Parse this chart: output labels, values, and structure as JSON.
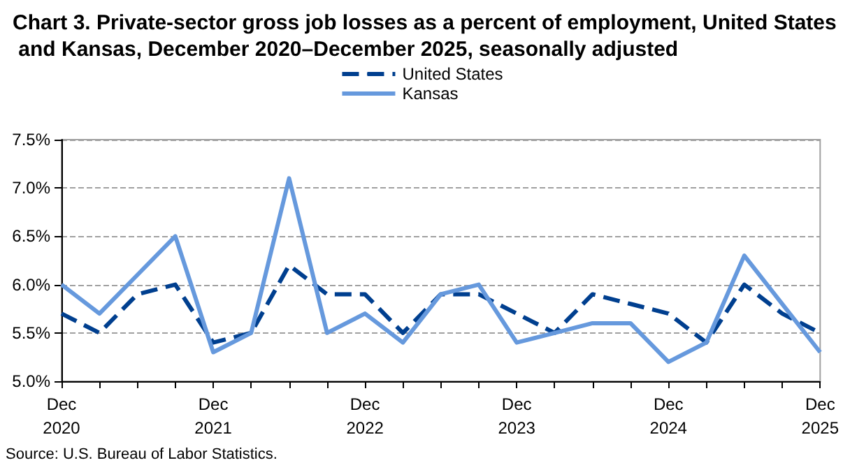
{
  "chart_data": {
    "type": "line",
    "title": "Chart 3. Private-sector gross job losses as a percent of employment, United States and Kansas, December 2020–December 2025, seasonally adjusted",
    "categories": [
      "Dec 2020",
      null,
      null,
      null,
      "Dec 2021",
      null,
      null,
      null,
      "Dec 2022",
      null,
      null,
      null,
      "Dec 2023",
      null,
      null,
      null,
      "Dec 2024",
      null,
      null,
      null,
      "Dec 2025"
    ],
    "series": [
      {
        "name": "United States",
        "color": "#003f8f",
        "line_style": "dashed",
        "values": [
          5.7,
          5.5,
          5.9,
          6.0,
          5.4,
          5.5,
          6.2,
          5.9,
          5.9,
          5.5,
          5.9,
          5.9,
          5.7,
          5.5,
          5.9,
          5.8,
          5.7,
          5.4,
          6.0,
          5.7,
          5.5
        ]
      },
      {
        "name": "Kansas",
        "color": "#6699dd",
        "line_style": "solid",
        "values": [
          6.0,
          5.7,
          6.1,
          6.5,
          5.3,
          5.5,
          7.1,
          5.5,
          5.7,
          5.4,
          5.9,
          6.0,
          5.4,
          5.5,
          5.6,
          5.6,
          5.2,
          5.4,
          6.3,
          5.8,
          5.3
        ]
      }
    ],
    "ylim": [
      5.0,
      7.5
    ],
    "yticks": [
      {
        "value": 5.0,
        "label": "5.0%"
      },
      {
        "value": 5.5,
        "label": "5.5%"
      },
      {
        "value": 6.0,
        "label": "6.0%"
      },
      {
        "value": 6.5,
        "label": "6.5%"
      },
      {
        "value": 7.0,
        "label": "7.0%"
      },
      {
        "value": 7.5,
        "label": "7.5%"
      }
    ],
    "grid": "y",
    "legend": "top",
    "marker": "none",
    "annotations": [
      "Source: U.S. Bureau of Labor Statistics."
    ]
  }
}
